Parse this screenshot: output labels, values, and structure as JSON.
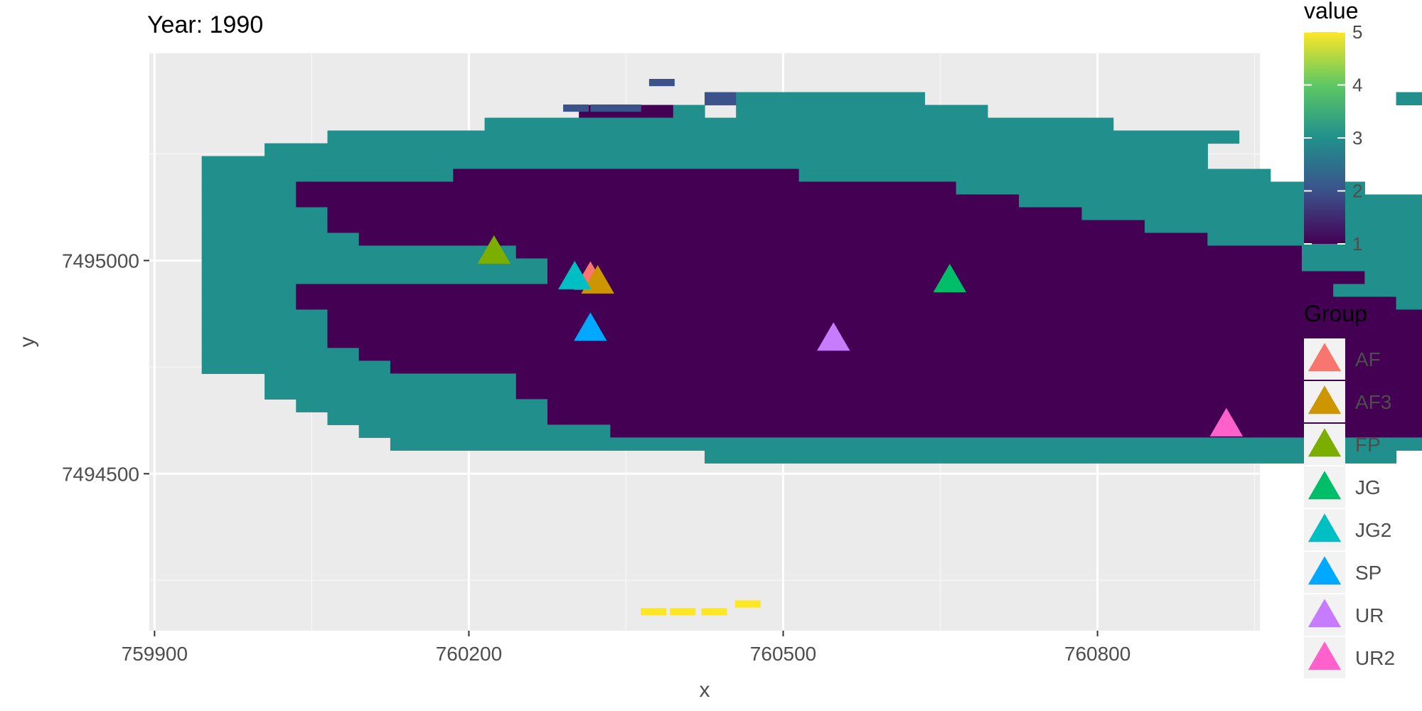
{
  "chart_data": {
    "type": "heatmap",
    "title": "Year: 1990",
    "xlabel": "x",
    "ylabel": "y",
    "xlim": [
      759895,
      760955
    ],
    "ylim": [
      7494132,
      7495486
    ],
    "x_ticks": [
      759900,
      760200,
      760500,
      760800
    ],
    "x_tick_labels": [
      "759900",
      "760200",
      "760500",
      "760800"
    ],
    "y_ticks": [
      7494500,
      7495000
    ],
    "y_tick_labels": [
      "7494500",
      "7495000"
    ],
    "grid": true,
    "raster": {
      "x0": 759945,
      "y0_top": 7495425,
      "cell_width": 30,
      "cell_height": 30,
      "rows": [
        "____________________________________________",
        "________________2333333_______________33331131",
        "____________1113_33333333_________________",
        "_________33333333333333333333_________________",
        "____33333333333333333333333333333__________",
        "__333333333333333333333333333333_______________",
        "33333333333333333333333333333333_______________",
        "3333333311111111111333333333333333_____________",
        "3331111111111111111111113333333333333__________",
        "3331111111111111111111111133333333333333_________",
        "333311111111111111111111111133333333333333______",
        "3333111111111111111111111111113333333333333_____",
        "333331111111111111111111111111113333333333333___",
        "33333333331111111111111111111111111333333333333_",
        "33333333333111111111111111111111111333333333333_",
        "33333333333111111111111111111111111113333333333_",
        "33311111111111111111111111111111111133333333333_",
        "33311111111111111111111111111111111111333333333_",
        "33331111111111111111111111111111111111133333333_",
        "333311111111111111111111111111111111111133333333",
        "3333111111111111111111111111111111111111133333333",
        "3333311111111111111111111111111111111111113333333",
        "3333331111111111111111111111111111111111111113333",
        "__333333331111111111111111111111111111111113333333",
        "__3333333311111111111111111111111111111111133333",
        "___333333331111111111111111111111111111113333333",
        "____3333333111111111111111111111111111113333333",
        "_____3333333311111111111111111111111111333333",
        "______3333333333333333333333333333333333333__",
        "________________3333333333333333333333________"
      ]
    },
    "cells": [
      {
        "x": 760384,
        "y": 7495418,
        "value": 2
      },
      {
        "x": 760302,
        "y": 7495358,
        "value": 2
      },
      {
        "x": 760328,
        "y": 7495358,
        "value": 2
      },
      {
        "x": 760352,
        "y": 7495358,
        "value": 2
      },
      {
        "x": 760376,
        "y": 7494177,
        "value": 5
      },
      {
        "x": 760404,
        "y": 7494177,
        "value": 5
      },
      {
        "x": 760434,
        "y": 7494177,
        "value": 5
      },
      {
        "x": 760466,
        "y": 7494195,
        "value": 5
      }
    ],
    "points": [
      {
        "group": "AF",
        "x": 760316,
        "y": 7494957
      },
      {
        "group": "AF3",
        "x": 760323,
        "y": 7494948
      },
      {
        "group": "FP",
        "x": 760224,
        "y": 7495018
      },
      {
        "group": "JG",
        "x": 760659,
        "y": 7494951
      },
      {
        "group": "JG2",
        "x": 760301,
        "y": 7494958
      },
      {
        "group": "SP",
        "x": 760316,
        "y": 7494837
      },
      {
        "group": "UR",
        "x": 760548,
        "y": 7494814
      },
      {
        "group": "UR2",
        "x": 760923,
        "y": 7494613
      }
    ],
    "legend_value": {
      "title": "value",
      "range": [
        1,
        5
      ],
      "ticks": [
        "1",
        "2",
        "3",
        "4",
        "5"
      ],
      "colors": [
        "#440154",
        "#3b528b",
        "#21908c",
        "#5dc863",
        "#fde725"
      ],
      "placement": "right"
    },
    "legend_group": {
      "title": "Group",
      "placement": "right",
      "entries": [
        {
          "label": "AF",
          "color": "#f8766d"
        },
        {
          "label": "AF3",
          "color": "#cd9600"
        },
        {
          "label": "FP",
          "color": "#7cae00"
        },
        {
          "label": "JG",
          "color": "#00be67"
        },
        {
          "label": "JG2",
          "color": "#00bfc4"
        },
        {
          "label": "SP",
          "color": "#00a9ff"
        },
        {
          "label": "UR",
          "color": "#c77cff"
        },
        {
          "label": "UR2",
          "color": "#ff61cc"
        }
      ]
    }
  }
}
